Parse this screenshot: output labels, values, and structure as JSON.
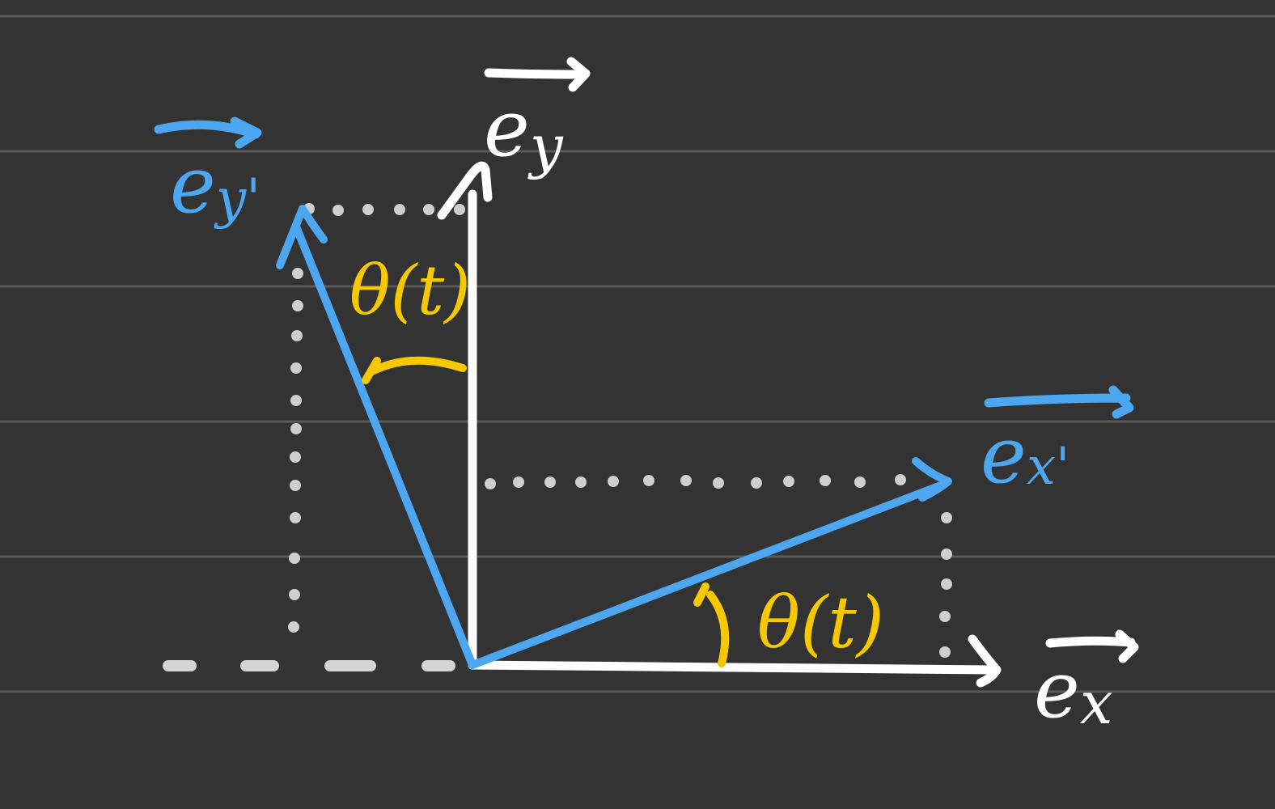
{
  "colors": {
    "background": "#333333",
    "ruled_line": "#5a5a5a",
    "original_axes": "#ffffff",
    "rotated_axes": "#4da6f0",
    "angle": "#f5c800",
    "projection": "#cfcfcf"
  },
  "labels": {
    "ex": "e",
    "ex_sub": "x",
    "ey": "e",
    "ey_sub": "y",
    "ex_prime": "e",
    "ex_prime_sub": "x'",
    "ey_prime": "e",
    "ey_prime_sub": "y'",
    "theta_top": "θ(t)",
    "theta_bottom": "θ(t)"
  }
}
